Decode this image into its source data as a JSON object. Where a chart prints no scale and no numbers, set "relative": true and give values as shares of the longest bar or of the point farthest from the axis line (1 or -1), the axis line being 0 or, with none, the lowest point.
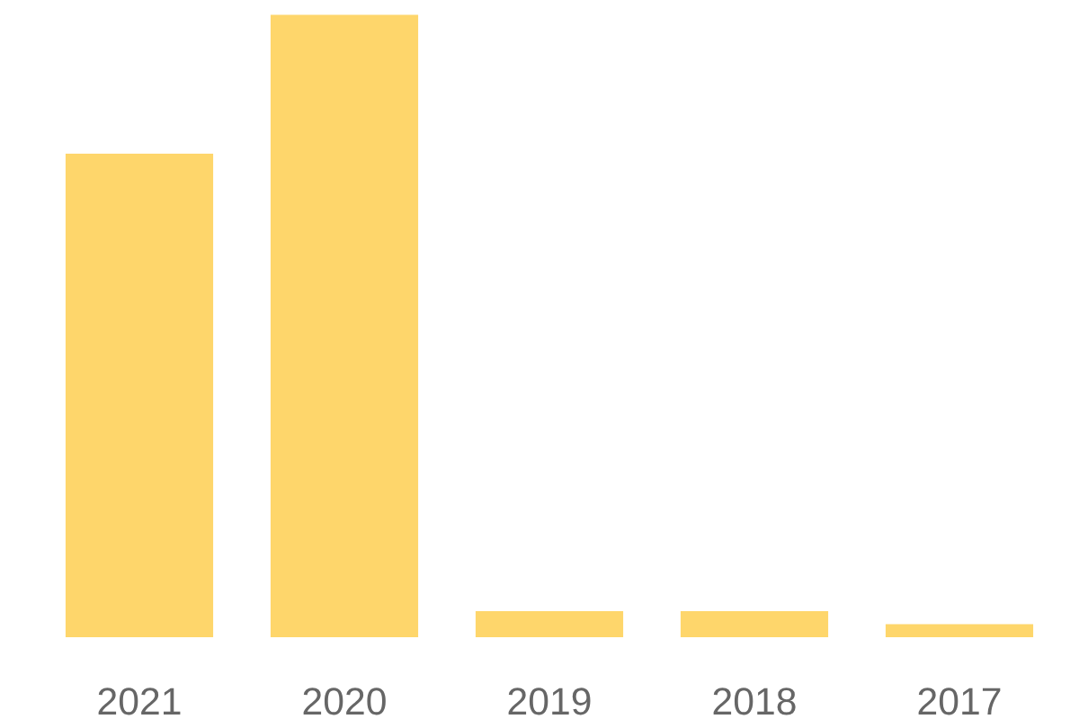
{
  "chart_data": {
    "type": "bar",
    "relative": true,
    "categories": [
      "2021",
      "2020",
      "2019",
      "2018",
      "2017"
    ],
    "values": [
      0.777,
      1,
      0.042,
      0.042,
      0.021
    ],
    "color": "#fed66b",
    "grid": false
  }
}
